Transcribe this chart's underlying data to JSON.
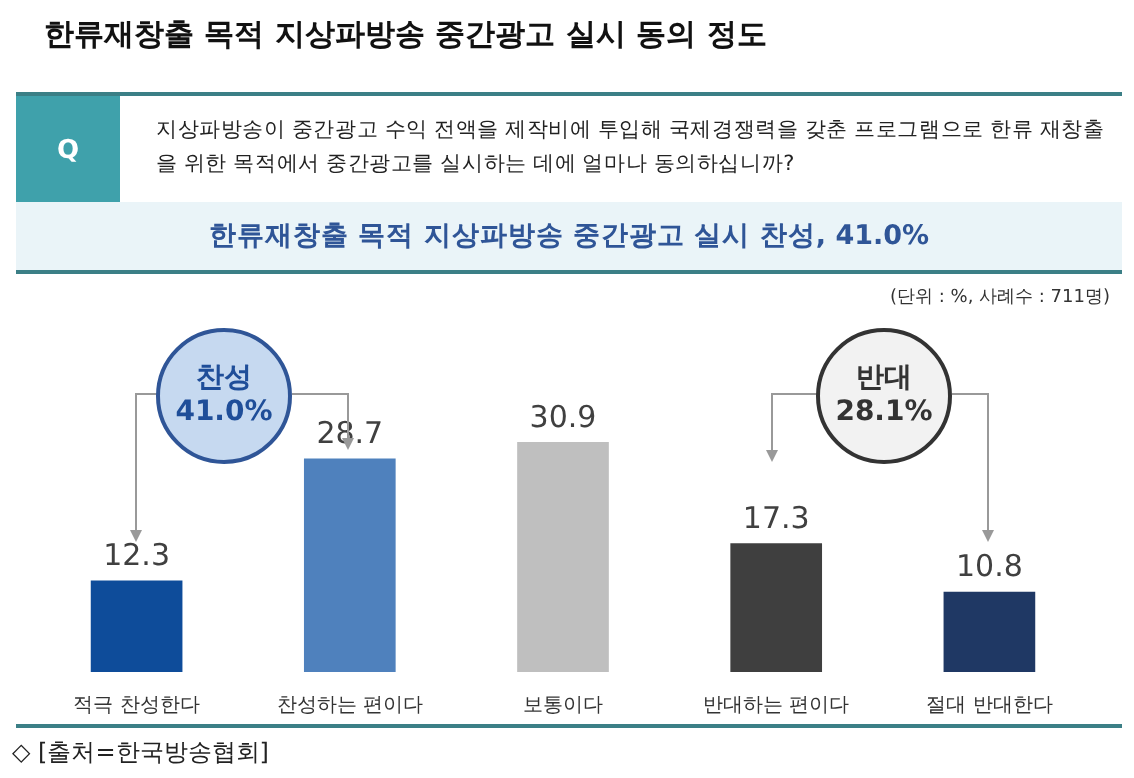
{
  "chart_data": {
    "type": "bar",
    "title": "한류재창출 목적 지상파방송 중간광고 실시 동의 정도",
    "subtitle": "한류재창출 목적 지상파방송 중간광고 실시 찬성, 41.0%",
    "categories": [
      "적극 찬성한다",
      "찬성하는 편이다",
      "보통이다",
      "반대하는 편이다",
      "절대 반대한다"
    ],
    "values": [
      12.3,
      28.7,
      30.9,
      17.3,
      10.8
    ],
    "colors": [
      "#0e4c9a",
      "#4f81bd",
      "#bfbfbf",
      "#3f3f3f",
      "#1f3864"
    ],
    "data_labels": true,
    "annotations": [
      "지상파방송이 중간광고 수익 전액을 제작비에 투입해 국제경쟁력을 갖춘 프로그램으로 한류 재창출을 위한 목적에서 중간광고를 실시하는 데에 얼마나 동의하십니까?",
      "(단위 : %, 사례수 : 711명)",
      "찬성 41.0%",
      "반대 28.1%",
      "◇ [출처=한국방송협회]",
      "Q"
    ]
  }
}
